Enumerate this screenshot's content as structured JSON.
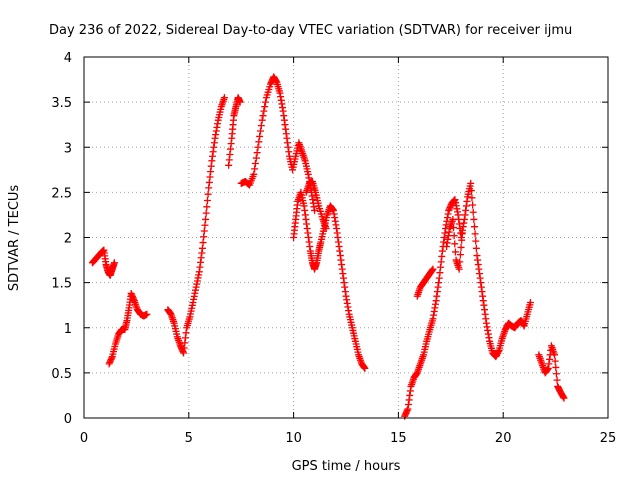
{
  "chart_data": {
    "type": "scatter",
    "title": "Day 236 of 2022, Sidereal Day-to-day VTEC variation (SDTVAR) for receiver ijmu",
    "xlabel": "GPS time / hours",
    "ylabel": "SDTVAR / TECUs",
    "xlim": [
      0,
      25
    ],
    "ylim": [
      0,
      4
    ],
    "x_ticks": [
      0,
      5,
      10,
      15,
      20,
      25
    ],
    "y_ticks": [
      0,
      0.5,
      1,
      1.5,
      2,
      2.5,
      3,
      3.5,
      4
    ],
    "x_tick_labels": [
      "0",
      "5",
      "10",
      "15",
      "20",
      "25"
    ],
    "y_tick_labels": [
      "0",
      "0.5",
      "1",
      "1.5",
      "2",
      "2.5",
      "3",
      "3.5",
      "4"
    ],
    "grid": true,
    "marker": "plus",
    "marker_color": "#ff0000",
    "series": [
      {
        "name": "SDTVAR",
        "segments": [
          {
            "x": [
              0.4,
              0.55,
              0.7,
              0.85,
              0.95,
              1.05,
              1.15,
              1.25,
              1.35,
              1.45
            ],
            "y": [
              1.72,
              1.76,
              1.8,
              1.84,
              1.86,
              1.7,
              1.62,
              1.58,
              1.65,
              1.72
            ]
          },
          {
            "x": [
              1.2,
              1.35,
              1.5,
              1.65,
              1.8,
              1.95,
              2.05,
              2.15,
              2.25,
              2.4,
              2.55,
              2.7,
              2.85,
              3.0
            ],
            "y": [
              0.6,
              0.68,
              0.82,
              0.93,
              0.98,
              0.98,
              1.08,
              1.22,
              1.38,
              1.3,
              1.2,
              1.15,
              1.13,
              1.15
            ]
          },
          {
            "x": [
              4.0,
              4.15,
              4.3,
              4.45,
              4.6,
              4.75,
              4.9,
              5.05,
              5.2,
              5.35,
              5.5,
              5.65,
              5.8,
              5.95,
              6.1,
              6.25,
              6.4,
              6.55,
              6.7
            ],
            "y": [
              1.2,
              1.15,
              1.05,
              0.9,
              0.8,
              0.72,
              1.0,
              1.12,
              1.28,
              1.45,
              1.62,
              1.88,
              2.2,
              2.55,
              2.85,
              3.1,
              3.3,
              3.45,
              3.55
            ]
          },
          {
            "x": [
              6.9,
              7.05,
              7.15,
              7.25,
              7.35,
              7.45
            ],
            "y": [
              2.8,
              3.1,
              3.35,
              3.45,
              3.55,
              3.5
            ]
          },
          {
            "x": [
              7.5,
              7.7,
              7.9,
              8.1,
              8.3,
              8.5,
              8.7,
              8.9,
              9.05,
              9.2,
              9.35,
              9.5,
              9.65,
              9.8,
              9.95,
              10.1,
              10.25,
              10.4,
              10.55,
              10.7,
              10.85,
              11.0
            ],
            "y": [
              2.6,
              2.62,
              2.58,
              2.7,
              3.0,
              3.3,
              3.55,
              3.7,
              3.78,
              3.72,
              3.6,
              3.4,
              3.15,
              2.9,
              2.75,
              2.9,
              3.05,
              2.95,
              2.85,
              2.7,
              2.5,
              2.3
            ]
          },
          {
            "x": [
              10.0,
              10.1,
              10.2,
              10.35,
              10.5,
              10.65,
              10.8,
              10.9,
              11.0,
              11.1,
              11.2,
              11.3,
              11.45,
              11.6,
              11.75,
              11.9,
              12.05,
              12.2,
              12.35,
              12.5,
              12.65,
              12.8,
              12.95,
              13.1,
              13.25,
              13.4
            ],
            "y": [
              2.0,
              2.2,
              2.4,
              2.5,
              2.35,
              2.1,
              1.85,
              1.72,
              1.65,
              1.72,
              1.85,
              1.95,
              2.1,
              2.25,
              2.35,
              2.3,
              2.1,
              1.85,
              1.6,
              1.35,
              1.15,
              1.0,
              0.85,
              0.7,
              0.6,
              0.55
            ]
          },
          {
            "x": [
              10.6,
              10.75,
              10.9,
              11.05,
              11.2,
              11.4,
              11.55
            ],
            "y": [
              2.5,
              2.6,
              2.62,
              2.5,
              2.35,
              2.2,
              2.1
            ]
          },
          {
            "x": [
              15.3,
              15.45,
              15.6,
              15.75,
              15.9,
              16.05,
              16.2,
              16.35,
              16.5,
              16.65,
              16.8,
              16.95,
              17.1,
              17.25,
              17.4,
              17.55,
              17.7,
              17.85,
              18.0,
              18.15,
              18.3,
              18.45,
              18.6,
              18.75,
              18.9,
              19.05,
              19.2,
              19.35,
              19.5,
              19.65,
              19.8,
              19.95,
              20.1,
              20.25,
              20.4,
              20.55,
              20.7,
              20.85,
              21.0,
              21.15,
              21.3
            ],
            "y": [
              0.02,
              0.1,
              0.35,
              0.45,
              0.5,
              0.6,
              0.7,
              0.85,
              0.98,
              1.1,
              1.3,
              1.55,
              1.85,
              2.1,
              2.3,
              2.38,
              2.42,
              2.25,
              2.0,
              2.2,
              2.45,
              2.6,
              2.2,
              1.8,
              1.55,
              1.3,
              1.05,
              0.85,
              0.72,
              0.68,
              0.75,
              0.88,
              0.98,
              1.05,
              1.02,
              1.0,
              1.05,
              1.08,
              1.02,
              1.15,
              1.28
            ]
          },
          {
            "x": [
              15.9,
              16.05,
              16.2,
              16.35,
              16.5,
              16.65
            ],
            "y": [
              1.35,
              1.45,
              1.5,
              1.55,
              1.6,
              1.65
            ]
          },
          {
            "x": [
              17.3,
              17.45,
              17.6,
              17.75,
              17.9,
              18.05
            ],
            "y": [
              1.9,
              2.1,
              2.2,
              1.75,
              1.65,
              2.05
            ]
          },
          {
            "x": [
              21.7,
              21.85,
              22.0,
              22.15,
              22.3,
              22.45,
              22.6,
              22.75,
              22.9
            ],
            "y": [
              0.7,
              0.6,
              0.5,
              0.55,
              0.8,
              0.7,
              0.35,
              0.28,
              0.22
            ]
          }
        ]
      }
    ]
  }
}
